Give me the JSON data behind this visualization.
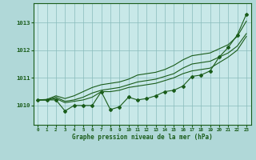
{
  "title": "Graphe pression niveau de la mer (hPa)",
  "background_color": "#b0d8d8",
  "plot_bg_color": "#c8e8e8",
  "grid_color": "#88bbbb",
  "line_color": "#1a5c1a",
  "x_labels": [
    "0",
    "1",
    "2",
    "3",
    "4",
    "5",
    "6",
    "7",
    "8",
    "9",
    "10",
    "11",
    "12",
    "13",
    "14",
    "15",
    "16",
    "17",
    "18",
    "19",
    "20",
    "21",
    "22",
    "23"
  ],
  "yticks": [
    1010,
    1011,
    1012,
    1013
  ],
  "ylim": [
    1009.3,
    1013.7
  ],
  "series": {
    "jagged": [
      1010.2,
      1010.2,
      1010.2,
      1009.8,
      1010.0,
      1010.0,
      1010.0,
      1010.5,
      1009.85,
      1009.95,
      1010.3,
      1010.2,
      1010.25,
      1010.35,
      1010.5,
      1010.55,
      1010.7,
      1011.05,
      1011.1,
      1011.25,
      1011.75,
      1012.1,
      1012.55,
      1013.3
    ],
    "smooth1": [
      1010.2,
      1010.2,
      1010.25,
      1010.1,
      1010.15,
      1010.2,
      1010.3,
      1010.5,
      1010.5,
      1010.55,
      1010.65,
      1010.7,
      1010.75,
      1010.8,
      1010.9,
      1011.0,
      1011.15,
      1011.25,
      1011.3,
      1011.35,
      1011.55,
      1011.75,
      1012.0,
      1012.5
    ],
    "smooth2": [
      1010.2,
      1010.2,
      1010.3,
      1010.15,
      1010.2,
      1010.3,
      1010.45,
      1010.55,
      1010.6,
      1010.65,
      1010.75,
      1010.85,
      1010.9,
      1010.95,
      1011.05,
      1011.15,
      1011.35,
      1011.5,
      1011.55,
      1011.6,
      1011.75,
      1011.9,
      1012.15,
      1012.6
    ],
    "smooth3": [
      1010.2,
      1010.22,
      1010.35,
      1010.25,
      1010.35,
      1010.5,
      1010.65,
      1010.75,
      1010.8,
      1010.85,
      1010.95,
      1011.1,
      1011.15,
      1011.2,
      1011.3,
      1011.45,
      1011.65,
      1011.8,
      1011.85,
      1011.9,
      1012.05,
      1012.2,
      1012.5,
      1013.05
    ]
  }
}
